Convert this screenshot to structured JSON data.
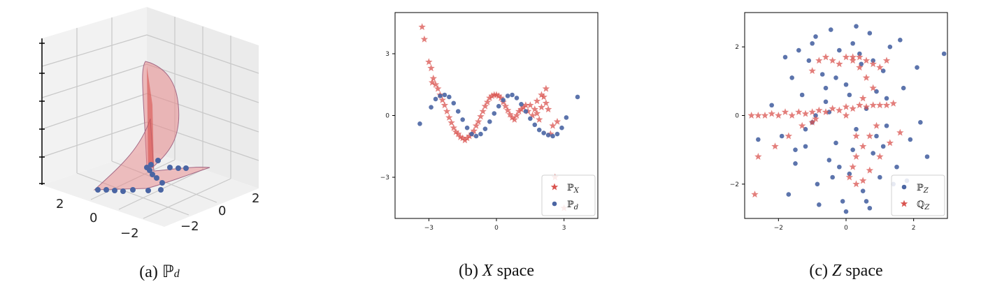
{
  "colors": {
    "p_star": "#d9534f",
    "d_dot": "#4a65a3",
    "axis": "#000000",
    "grid": "#c8c8c8",
    "surface": "#e8888a"
  },
  "panel_a": {
    "caption_prefix": "(a)",
    "caption_sym": "ℙ",
    "caption_sub": "d",
    "tick_labels_left": [
      "2",
      "0",
      "−2"
    ],
    "tick_labels_right": [
      "2",
      "0",
      "−2"
    ]
  },
  "panel_b": {
    "caption_prefix": "(b)",
    "caption_var": "X",
    "caption_suffix": "space",
    "legend": [
      {
        "sym": "ℙ",
        "sub": "X",
        "marker": "star"
      },
      {
        "sym": "ℙ",
        "sub": "d",
        "marker": "dot"
      }
    ]
  },
  "panel_c": {
    "caption_prefix": "(c)",
    "caption_var": "Z",
    "caption_suffix": "space",
    "legend": [
      {
        "sym": "ℙ",
        "sub": "Z",
        "marker": "dot"
      },
      {
        "sym": "ℚ",
        "sub": "Z",
        "marker": "star"
      }
    ]
  },
  "chart_data": [
    {
      "type": "scatter",
      "panel": "b",
      "xlim": [
        -4.5,
        4.5
      ],
      "ylim": [
        -5.0,
        5.0
      ],
      "xticks": [
        -3,
        0,
        3
      ],
      "yticks": [
        -3,
        0,
        3
      ],
      "xtick_labels": [
        "−3",
        "0",
        "3"
      ],
      "ytick_labels": [
        "−3",
        "0",
        "3"
      ],
      "grid": false,
      "legend_position": "bottom-right",
      "series": [
        {
          "name": "ℙX",
          "marker": "star",
          "x": [
            -3.3,
            -3.2,
            -3.0,
            -2.9,
            -2.85,
            -2.8,
            -2.7,
            -2.6,
            -2.5,
            -2.4,
            -2.3,
            -2.2,
            -2.1,
            -2.0,
            -1.9,
            -1.8,
            -1.7,
            -1.6,
            -1.5,
            -1.4,
            -1.3,
            -1.2,
            -1.1,
            -1.0,
            -0.9,
            -0.8,
            -0.7,
            -0.6,
            -0.5,
            -0.4,
            -0.3,
            -0.2,
            -0.1,
            0.0,
            0.1,
            0.2,
            0.3,
            0.4,
            0.5,
            0.6,
            0.7,
            0.8,
            0.9,
            1.0,
            1.1,
            1.2,
            1.3,
            1.4,
            1.5,
            1.6,
            1.7,
            1.8,
            1.9,
            2.0,
            2.1,
            2.2,
            2.3,
            2.5,
            2.7,
            3.0,
            2.4,
            2.2,
            2.0,
            1.8,
            2.6
          ],
          "y": [
            4.3,
            3.7,
            2.6,
            2.3,
            1.6,
            1.8,
            1.5,
            1.3,
            1.0,
            0.75,
            0.5,
            0.2,
            -0.1,
            -0.35,
            -0.6,
            -0.8,
            -0.9,
            -1.05,
            -1.1,
            -1.2,
            -1.1,
            -1.0,
            -0.9,
            -0.75,
            -0.5,
            -0.3,
            -0.05,
            0.2,
            0.45,
            0.65,
            0.85,
            0.95,
            1.0,
            1.0,
            0.95,
            0.85,
            0.65,
            0.45,
            0.25,
            0.05,
            -0.1,
            -0.2,
            0.0,
            0.2,
            0.3,
            0.4,
            0.5,
            0.2,
            0.5,
            0.0,
            0.3,
            0.7,
            -0.2,
            0.4,
            0.9,
            1.3,
            0.3,
            -0.5,
            -0.3,
            -4.5,
            -0.9,
            0.6,
            1.0,
            0.1,
            -3.0
          ]
        },
        {
          "name": "ℙd",
          "marker": "dot",
          "x": [
            -3.4,
            -2.9,
            -2.7,
            -2.5,
            -2.3,
            -2.1,
            -1.9,
            -1.7,
            -1.5,
            -1.3,
            -1.1,
            -0.9,
            -0.7,
            -0.5,
            -0.3,
            -0.1,
            0.1,
            0.3,
            0.5,
            0.7,
            0.9,
            1.1,
            1.3,
            1.5,
            1.7,
            1.9,
            2.1,
            2.3,
            2.5,
            2.7,
            2.9,
            3.1,
            3.6
          ],
          "y": [
            -0.4,
            0.4,
            0.8,
            0.95,
            1.0,
            0.9,
            0.6,
            0.2,
            -0.2,
            -0.6,
            -0.9,
            -1.0,
            -0.9,
            -0.65,
            -0.3,
            0.1,
            0.45,
            0.75,
            0.95,
            1.0,
            0.85,
            0.55,
            0.2,
            -0.15,
            -0.45,
            -0.7,
            -0.85,
            -0.95,
            -1.0,
            -0.9,
            -0.6,
            -0.1,
            0.9
          ]
        }
      ]
    },
    {
      "type": "scatter",
      "panel": "c",
      "xlim": [
        -3.0,
        3.0
      ],
      "ylim": [
        -3.0,
        3.0
      ],
      "xticks": [
        -2,
        0,
        2
      ],
      "yticks": [
        -2,
        0,
        2
      ],
      "xtick_labels": [
        "−2",
        "0",
        "2"
      ],
      "ytick_labels": [
        "−2",
        "0",
        "2"
      ],
      "grid": false,
      "legend_position": "bottom-right",
      "series": [
        {
          "name": "ℙZ",
          "marker": "dot",
          "x": [
            -2.2,
            -1.9,
            -1.6,
            -1.5,
            -1.3,
            -1.2,
            -1.1,
            -1.0,
            -0.9,
            -0.85,
            -0.7,
            -0.6,
            -0.5,
            -0.45,
            -0.3,
            -0.2,
            -0.1,
            0.0,
            0.1,
            0.2,
            0.3,
            0.45,
            0.5,
            0.6,
            0.7,
            0.8,
            0.9,
            1.0,
            1.1,
            1.2,
            1.3,
            1.5,
            1.7,
            1.9,
            2.1,
            2.4,
            2.9,
            -2.6,
            -1.7,
            -1.4,
            -0.8,
            -0.4,
            0.3,
            0.8,
            1.4,
            -0.6,
            0.2,
            0.9,
            -1.8,
            -1.0,
            0.0,
            1.6,
            -0.3,
            0.6,
            1.2,
            -1.2,
            0.4,
            -0.9,
            1.1,
            -0.2,
            0.7,
            -1.5,
            2.2,
            -0.5,
            0.1,
            1.8
          ],
          "y": [
            0.3,
            -0.6,
            1.1,
            -1.4,
            0.6,
            -0.9,
            1.6,
            -0.2,
            2.3,
            -2.0,
            1.2,
            0.4,
            -1.3,
            2.5,
            -0.8,
            1.9,
            -2.5,
            0.9,
            -1.7,
            2.1,
            -0.4,
            1.5,
            -2.2,
            0.2,
            2.4,
            -1.1,
            0.7,
            -1.8,
            1.3,
            -0.3,
            2.0,
            -1.5,
            0.8,
            -0.7,
            1.4,
            -1.2,
            1.8,
            -0.7,
            -2.3,
            1.9,
            -2.6,
            -1.8,
            2.6,
            1.6,
            -2.0,
            0.8,
            -1.0,
            -0.6,
            1.7,
            2.1,
            -2.8,
            2.2,
            1.1,
            -2.5,
            0.5,
            -0.4,
            1.8,
            0.0,
            -0.9,
            -1.5,
            -2.7,
            -1.0,
            -0.2,
            0.1,
            0.6,
            -1.9
          ]
        },
        {
          "name": "ℚZ",
          "marker": "star",
          "x": [
            -2.8,
            -2.6,
            -2.4,
            -2.2,
            -2.0,
            -1.8,
            -1.6,
            -1.4,
            -1.2,
            -1.0,
            -0.8,
            -0.6,
            -0.4,
            -0.2,
            0.0,
            0.2,
            0.4,
            0.6,
            0.8,
            1.0,
            1.2,
            1.4,
            -1.0,
            -0.8,
            -0.6,
            -0.4,
            -0.2,
            0.0,
            0.2,
            0.4,
            0.6,
            0.8,
            1.0,
            1.2,
            0.9,
            0.7,
            0.5,
            0.3,
            0.2,
            0.1,
            0.3,
            0.5,
            0.7,
            1.0,
            1.3,
            1.6,
            -0.9,
            -1.3,
            -1.7,
            -2.1,
            -2.6,
            -2.7,
            -1.0,
            0.0,
            0.5,
            0.8,
            0.6,
            0.4,
            0.2,
            0.3
          ],
          "y": [
            0.0,
            0.0,
            0.0,
            0.05,
            0.0,
            0.1,
            0.0,
            0.1,
            0.05,
            0.1,
            0.15,
            0.1,
            0.2,
            0.15,
            0.25,
            0.2,
            0.3,
            0.25,
            0.3,
            0.3,
            0.3,
            0.35,
            1.3,
            1.6,
            1.7,
            1.6,
            1.5,
            1.7,
            1.6,
            1.7,
            1.6,
            1.5,
            1.4,
            1.6,
            -0.3,
            -0.6,
            -0.9,
            -1.2,
            -1.5,
            -1.8,
            -2.0,
            -1.9,
            -1.6,
            -1.2,
            -0.8,
            -0.5,
            -0.1,
            -0.3,
            -0.6,
            -0.9,
            -1.2,
            -2.3,
            -0.2,
            0.0,
            0.5,
            0.8,
            1.1,
            1.4,
            1.7,
            -0.6
          ]
        }
      ]
    }
  ]
}
